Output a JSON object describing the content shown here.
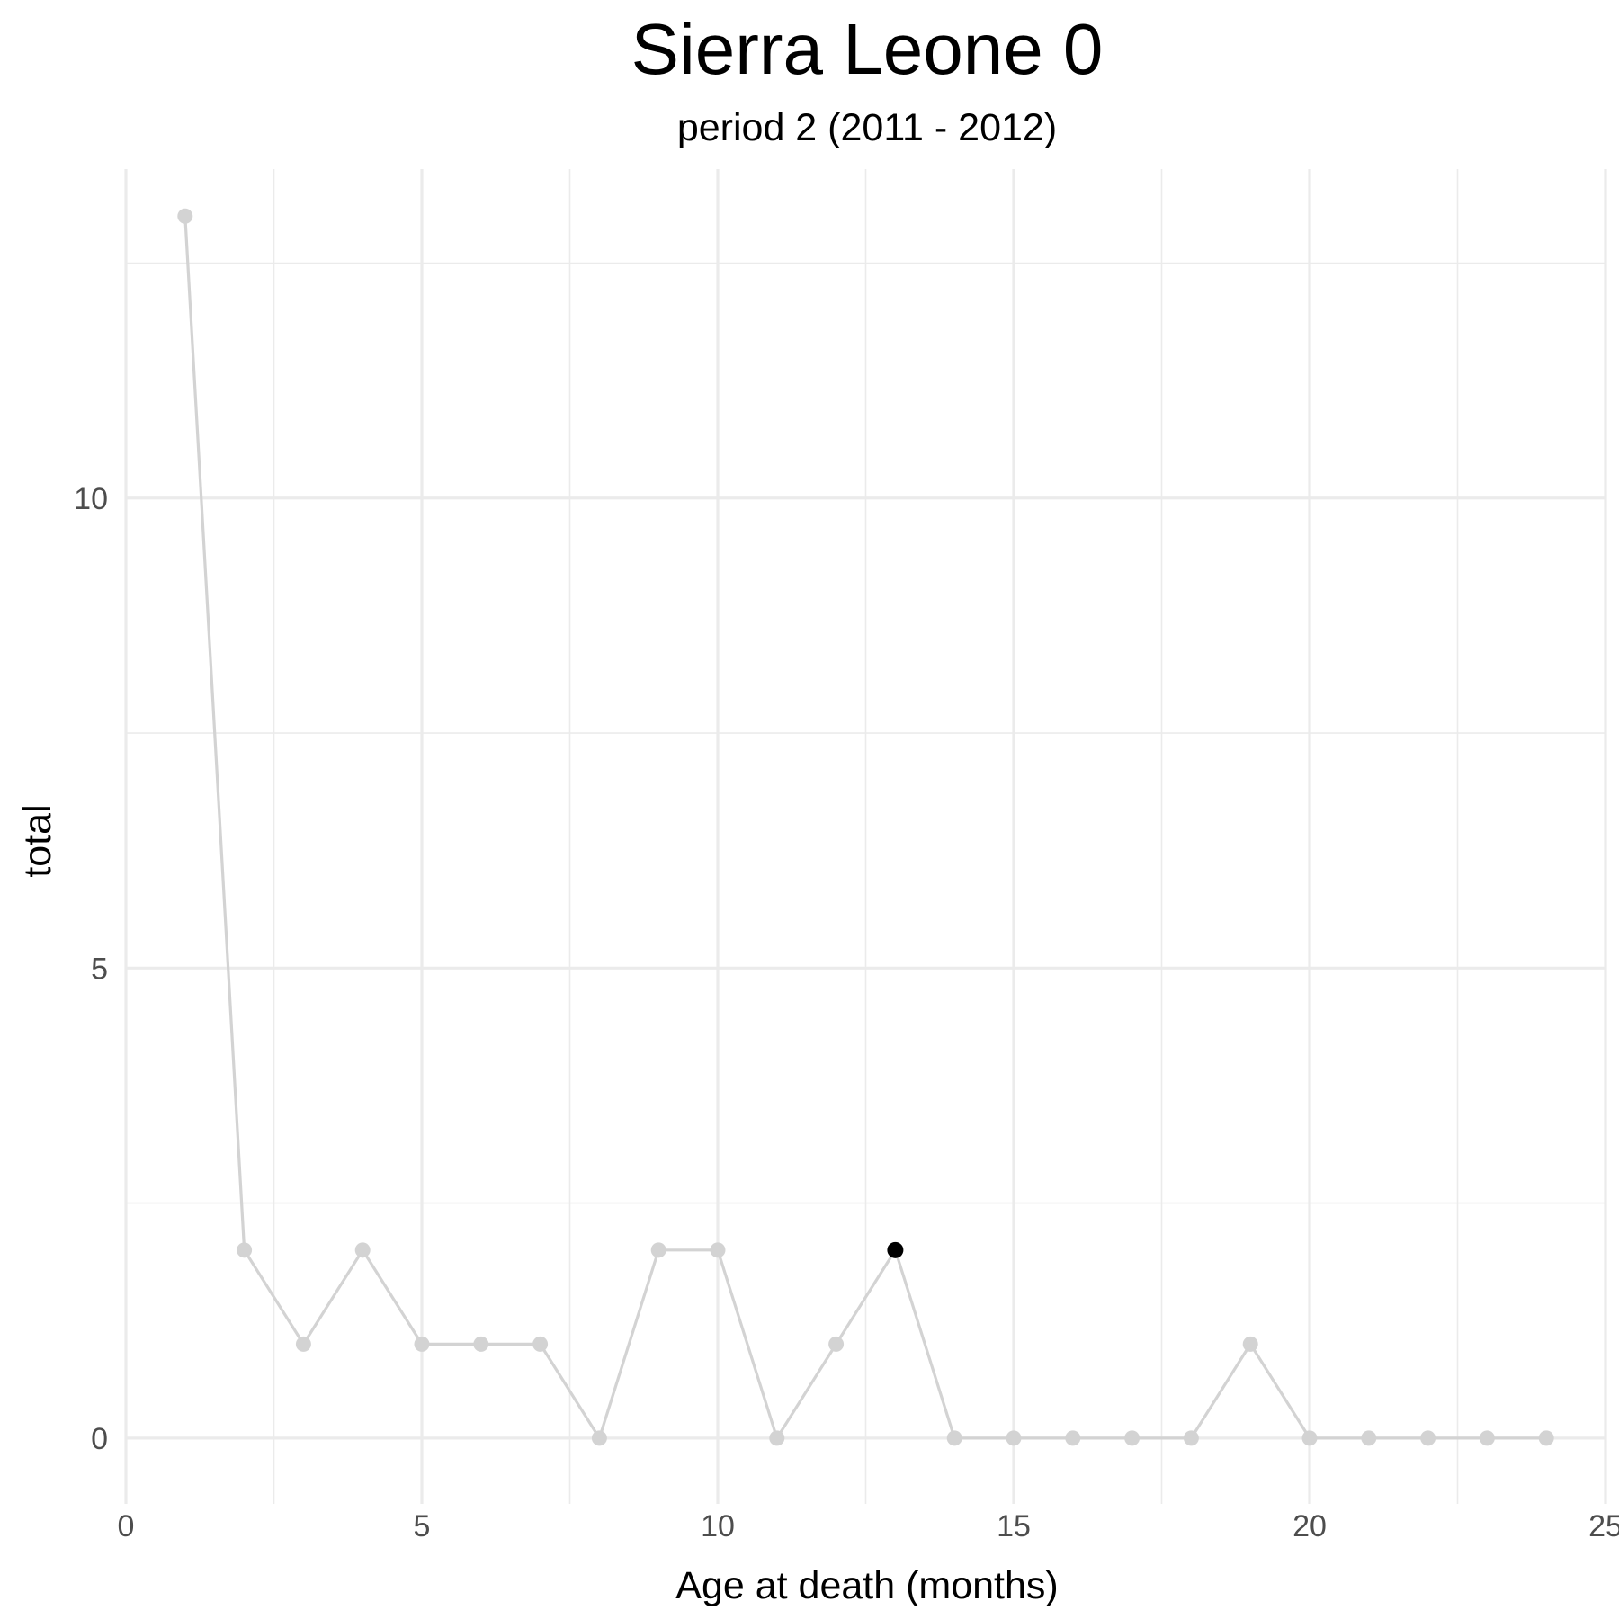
{
  "chart_data": {
    "type": "line",
    "title": "Sierra Leone 0",
    "subtitle": "period 2 (2011 - 2012)",
    "xlabel": "Age at death (months)",
    "ylabel": "total",
    "xlim": [
      0,
      25
    ],
    "ylim": [
      -0.7,
      13.5
    ],
    "x_ticks": [
      0,
      5,
      10,
      15,
      20,
      25
    ],
    "y_ticks": [
      0,
      5,
      10
    ],
    "x_minor_ticks": [
      2.5,
      7.5,
      12.5,
      17.5,
      22.5
    ],
    "y_minor_ticks": [
      2.5,
      7.5,
      12.5
    ],
    "grid": true,
    "series": [
      {
        "x": [
          1,
          2,
          3,
          4,
          5,
          6,
          7,
          8,
          9,
          10,
          11,
          12,
          13,
          14,
          15,
          16,
          17,
          18,
          19,
          20,
          21,
          22,
          23,
          24
        ],
        "values": [
          13,
          2,
          1,
          2,
          1,
          1,
          1,
          0,
          2,
          2,
          0,
          1,
          2,
          0,
          0,
          0,
          0,
          0,
          1,
          0,
          0,
          0,
          0,
          0
        ],
        "color": "#d3d3d3"
      }
    ],
    "highlight": {
      "x": 13,
      "y": 2,
      "color": "#000000"
    }
  }
}
